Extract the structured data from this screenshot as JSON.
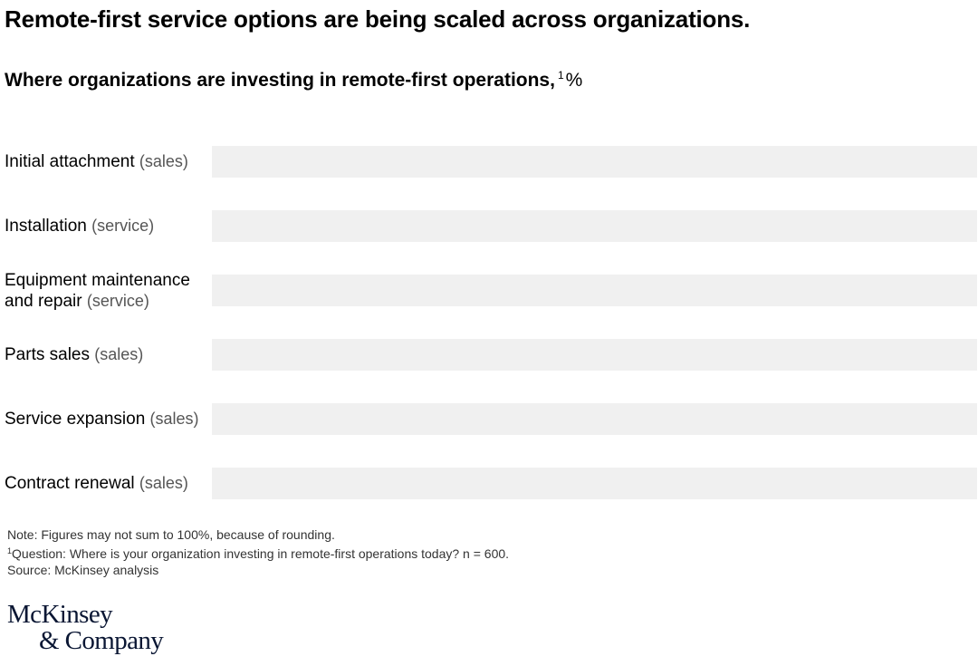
{
  "header": {
    "title": "Remote-first service options are being scaled across organizations.",
    "subtitle": "Where organizations are investing in remote-first operations,",
    "subtitle_footnote_mark": "1",
    "subtitle_unit": "%"
  },
  "chart_data": {
    "type": "bar",
    "orientation": "horizontal",
    "categories": [
      {
        "label": "Initial attachment",
        "qualifier": "(sales)"
      },
      {
        "label": "Installation",
        "qualifier": "(service)"
      },
      {
        "label": "Equipment maintenance and repair",
        "qualifier": "(service)"
      },
      {
        "label": "Parts sales",
        "qualifier": "(sales)"
      },
      {
        "label": "Service expansion",
        "qualifier": "(sales)"
      },
      {
        "label": "Contract renewal",
        "qualifier": "(sales)"
      }
    ],
    "values": [
      0,
      0,
      0,
      0,
      0,
      0
    ],
    "xlim": [
      0,
      100
    ],
    "colors": {
      "track": "#f0f0f0",
      "fill": "#1f40e6"
    },
    "grid": false,
    "legend": "none"
  },
  "footer": {
    "note": "Note: Figures may not sum to 100%, because of rounding.",
    "question_mark": "1",
    "question": "Question: Where is your organization investing in remote-first operations today? n = 600.",
    "source": "Source: McKinsey analysis"
  },
  "logo": {
    "line1": "McKinsey",
    "line2": "& Company"
  }
}
